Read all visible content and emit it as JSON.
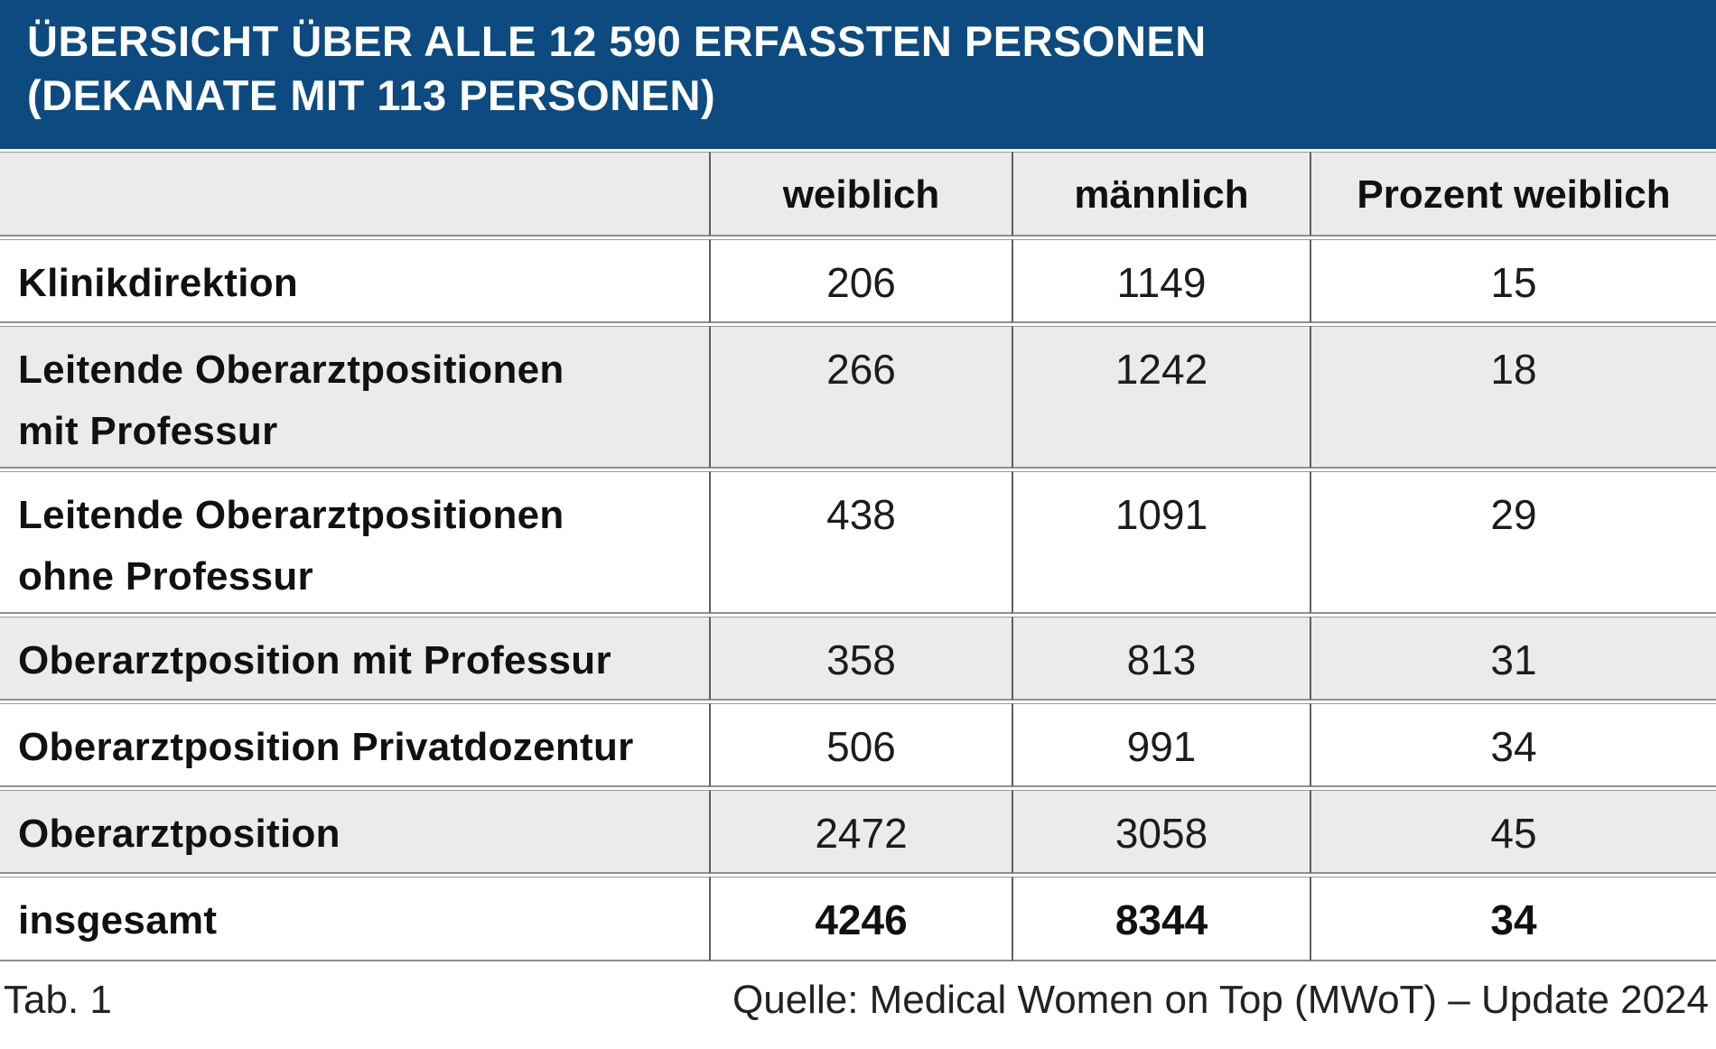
{
  "title": {
    "line1": "ÜBERSICHT ÜBER ALLE 12 590 ERFASSTEN PERSONEN",
    "line2": "(DEKANATE MIT 113 PERSONEN)"
  },
  "table": {
    "columns": [
      "",
      "weiblich",
      "männlich",
      "Prozent weiblich"
    ],
    "rows": [
      {
        "label": "Klinikdirektion",
        "values": [
          "206",
          "1149",
          "15"
        ]
      },
      {
        "label": "Leitende Oberarztpositionen\nmit Professur",
        "values": [
          "266",
          "1242",
          "18"
        ]
      },
      {
        "label": "Leitende Oberarztpositionen\nohne Professur",
        "values": [
          "438",
          "1091",
          "29"
        ]
      },
      {
        "label": "Oberarztposition mit Professur",
        "values": [
          "358",
          "813",
          "31"
        ]
      },
      {
        "label": "Oberarztposition Privatdozentur",
        "values": [
          "506",
          "991",
          "34"
        ]
      },
      {
        "label": "Oberarztposition",
        "values": [
          "2472",
          "3058",
          "45"
        ]
      },
      {
        "label": "insgesamt",
        "values": [
          "4246",
          "8344",
          "34"
        ]
      }
    ]
  },
  "footer": {
    "left": "Tab. 1",
    "right": "Quelle: Medical Women on Top (MWoT) – Update 2024"
  },
  "colors": {
    "title_band_blue": "#0d4a80",
    "row_alt_gray": "#ebebe9",
    "row_white": "#ffffff",
    "vertical_border": "#5f5f5f",
    "horizontal_border": "#9a9a9a",
    "title_text": "#ffffff",
    "body_text": "#111111"
  },
  "chart_data": {
    "type": "table",
    "title": "ÜBERSICHT ÜBER ALLE 12 590 ERFASSTEN PERSONEN (DEKANATE MIT 113 PERSONEN)",
    "columns": [
      "",
      "weiblich",
      "männlich",
      "Prozent weiblich"
    ],
    "rows": [
      [
        "Klinikdirektion",
        206,
        1149,
        15
      ],
      [
        "Leitende Oberarztpositionen mit Professur",
        266,
        1242,
        18
      ],
      [
        "Leitende Oberarztpositionen ohne Professur",
        438,
        1091,
        29
      ],
      [
        "Oberarztposition mit Professur",
        358,
        813,
        31
      ],
      [
        "Oberarztposition Privatdozentur",
        506,
        991,
        34
      ],
      [
        "Oberarztposition",
        2472,
        3058,
        45
      ],
      [
        "insgesamt",
        4246,
        8344,
        34
      ]
    ],
    "caption": "Tab. 1",
    "source": "Quelle: Medical Women on Top (MWoT) – Update 2024",
    "total_persons": 12590,
    "dekanate_persons": 113
  }
}
